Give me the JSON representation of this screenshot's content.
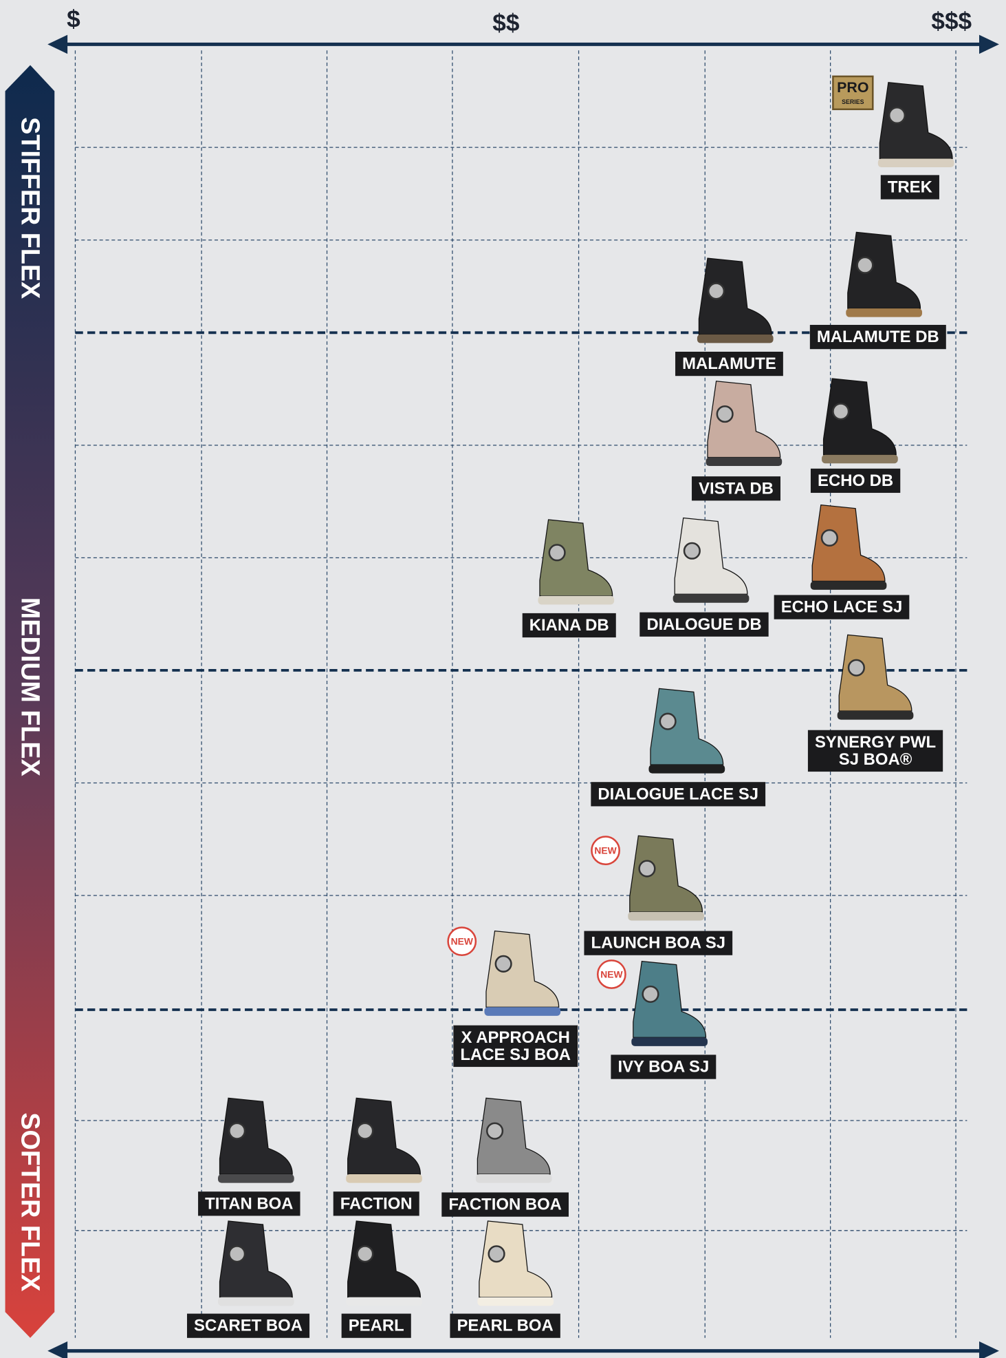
{
  "axis": {
    "price_labels": [
      "$",
      "$$",
      "$$$"
    ],
    "flex_labels": [
      "STIFFER FLEX",
      "MEDIUM FLEX",
      "SOFTER FLEX"
    ]
  },
  "products": [
    {
      "name": [
        "TREK"
      ],
      "badge": [
        "PRO",
        "SERIES"
      ]
    },
    {
      "name": [
        "MALAMUTE DB"
      ]
    },
    {
      "name": [
        "MALAMUTE"
      ]
    },
    {
      "name": [
        "VISTA DB"
      ]
    },
    {
      "name": [
        "ECHO DB"
      ]
    },
    {
      "name": [
        "ECHO LACE SJ"
      ]
    },
    {
      "name": [
        "KIANA DB"
      ]
    },
    {
      "name": [
        "DIALOGUE DB"
      ]
    },
    {
      "name": [
        "SYNERGY PWL",
        "SJ BOA®"
      ]
    },
    {
      "name": [
        "DIALOGUE LACE SJ"
      ]
    },
    {
      "name": [
        "LAUNCH BOA SJ"
      ],
      "badge": [
        "NEW"
      ]
    },
    {
      "name": [
        "X APPROACH",
        "LACE SJ BOA"
      ],
      "badge": [
        "NEW"
      ]
    },
    {
      "name": [
        "IVY BOA SJ"
      ],
      "badge": [
        "NEW"
      ]
    },
    {
      "name": [
        "TITAN BOA"
      ]
    },
    {
      "name": [
        "FACTION"
      ]
    },
    {
      "name": [
        "FACTION BOA"
      ]
    },
    {
      "name": [
        "SCARET BOA"
      ]
    },
    {
      "name": [
        "PEARL"
      ]
    },
    {
      "name": [
        "PEARL BOA"
      ]
    }
  ]
}
